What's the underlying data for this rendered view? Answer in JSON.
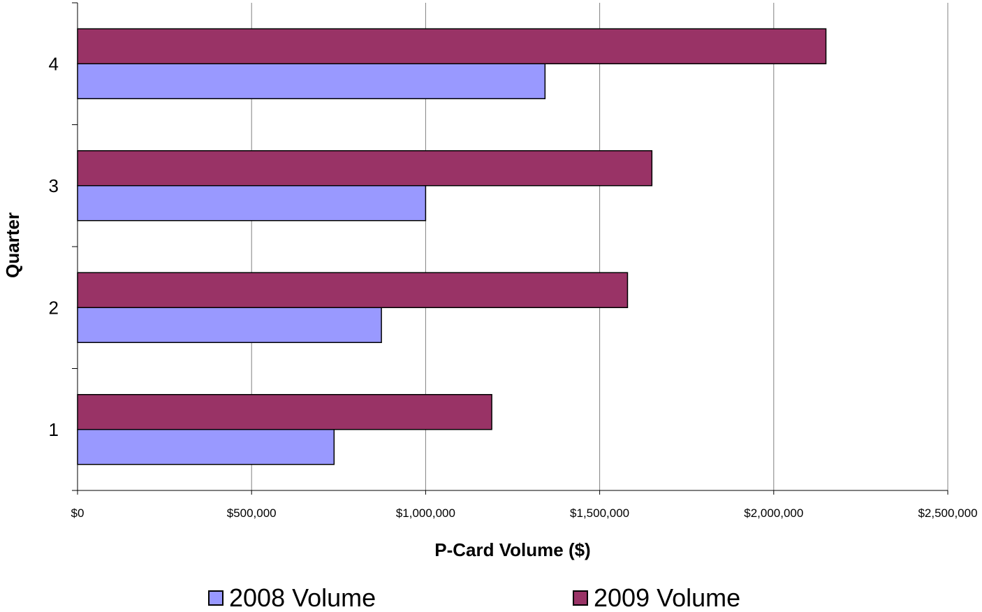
{
  "chart_data": {
    "type": "bar",
    "orientation": "horizontal",
    "categories": [
      "1",
      "2",
      "3",
      "4"
    ],
    "series": [
      {
        "name": "2008 Volume",
        "values": [
          737000,
          873000,
          1000000,
          1343000
        ],
        "color": "#9999ff"
      },
      {
        "name": "2009 Volume",
        "values": [
          1190000,
          1580000,
          1650000,
          2150000
        ],
        "color": "#993366"
      }
    ],
    "xlabel": "P-Card Volume ($)",
    "ylabel": "Quarter",
    "xlim": [
      0,
      2500000
    ],
    "xticks": [
      0,
      500000,
      1000000,
      1500000,
      2000000,
      2500000
    ],
    "xtick_labels": [
      "$0",
      "$500,000",
      "$1,000,000",
      "$1,500,000",
      "$2,000,000",
      "$2,500,000"
    ],
    "grid": "vertical",
    "legend_position": "bottom"
  }
}
